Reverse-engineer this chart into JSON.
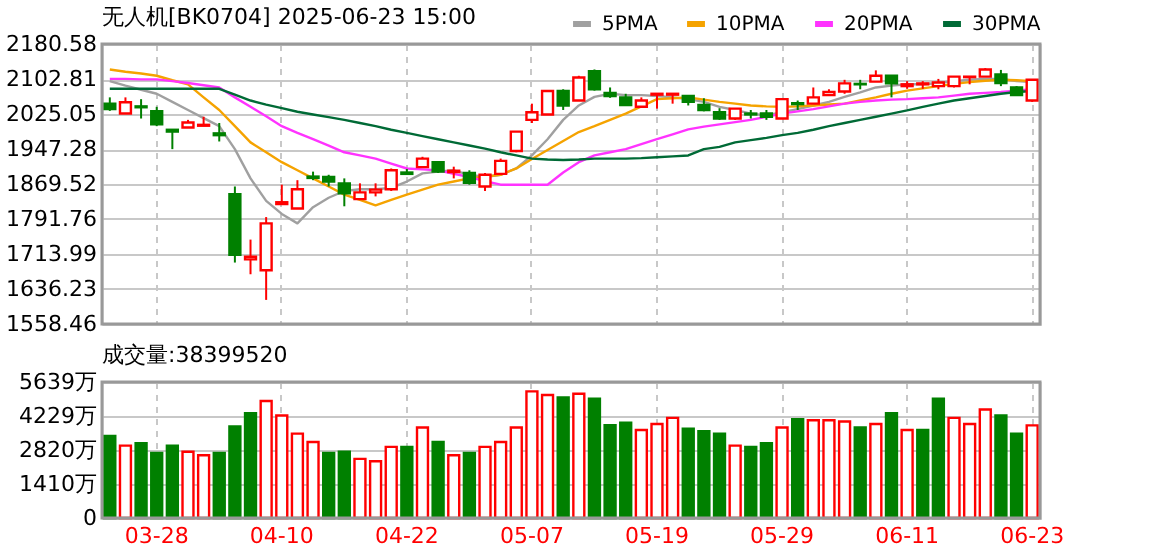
{
  "chart_data": [
    {
      "type": "candlestick",
      "title": "无人机[BK0704] 2025-06-23 15:00",
      "categories": [
        null,
        null,
        null,
        null,
        null,
        null,
        null,
        null,
        null,
        null,
        null,
        null,
        null,
        null,
        null,
        null,
        null,
        null,
        null,
        null,
        null,
        null,
        null,
        null,
        null,
        null,
        null,
        null,
        null,
        null,
        null,
        null,
        null,
        null,
        null,
        null,
        null,
        null,
        null,
        null,
        null,
        null,
        null,
        null,
        null,
        null,
        null,
        null,
        null,
        null,
        null,
        null,
        null,
        null,
        null,
        null,
        null,
        null,
        null,
        null
      ],
      "ohlc": [
        [
          2048,
          2062,
          2032,
          2036
        ],
        [
          2026,
          2062,
          2026,
          2051
        ],
        [
          2042,
          2058,
          2015,
          2040
        ],
        [
          2031,
          2041,
          1998,
          2002
        ],
        [
          1990,
          1991,
          1947,
          1986
        ],
        [
          1995,
          2012,
          1995,
          2006
        ],
        [
          1999,
          2019,
          1998,
          2001
        ],
        [
          1982,
          2005,
          1964,
          1978
        ],
        [
          1847,
          1864,
          1695,
          1712
        ],
        [
          1702,
          1746,
          1669,
          1708
        ],
        [
          1678,
          1796,
          1612,
          1782
        ],
        [
          1825,
          1868,
          1825,
          1829
        ],
        [
          1815,
          1878,
          1815,
          1858
        ],
        [
          1886,
          1897,
          1878,
          1883
        ],
        [
          1885,
          1890,
          1864,
          1875
        ],
        [
          1871,
          1882,
          1820,
          1849
        ],
        [
          1836,
          1871,
          1836,
          1851
        ],
        [
          1851,
          1871,
          1842,
          1857
        ],
        [
          1858,
          1904,
          1854,
          1900
        ],
        [
          1895,
          1903,
          1890,
          1892
        ],
        [
          1907,
          1930,
          1907,
          1926
        ],
        [
          1918,
          1918,
          1894,
          1897
        ],
        [
          1896,
          1908,
          1882,
          1899
        ],
        [
          1894,
          1900,
          1868,
          1872
        ],
        [
          1864,
          1894,
          1854,
          1890
        ],
        [
          1892,
          1926,
          1892,
          1921
        ],
        [
          1943,
          1986,
          1940,
          1986
        ],
        [
          2012,
          2048,
          2005,
          2029
        ],
        [
          2024,
          2076,
          2024,
          2076
        ],
        [
          2076,
          2080,
          2034,
          2044
        ],
        [
          2055,
          2110,
          2055,
          2106
        ],
        [
          2120,
          2124,
          2077,
          2080
        ],
        [
          2072,
          2084,
          2061,
          2065
        ],
        [
          2062,
          2070,
          2045,
          2045
        ],
        [
          2041,
          2062,
          2041,
          2055
        ],
        [
          2068,
          2070,
          2037,
          2070
        ],
        [
          2068,
          2070,
          2048,
          2070
        ],
        [
          2065,
          2067,
          2044,
          2052
        ],
        [
          2045,
          2060,
          2031,
          2034
        ],
        [
          2029,
          2038,
          2012,
          2015
        ],
        [
          2015,
          2037,
          2012,
          2037
        ],
        [
          2026,
          2034,
          2015,
          2024
        ],
        [
          2026,
          2034,
          2012,
          2019
        ],
        [
          2015,
          2058,
          2015,
          2058
        ],
        [
          2049,
          2055,
          2034,
          2047
        ],
        [
          2048,
          2084,
          2048,
          2062
        ],
        [
          2067,
          2080,
          2067,
          2074
        ],
        [
          2075,
          2101,
          2070,
          2093
        ],
        [
          2092,
          2101,
          2080,
          2091
        ],
        [
          2097,
          2122,
          2097,
          2110
        ],
        [
          2110,
          2110,
          2062,
          2093
        ],
        [
          2087,
          2098,
          2081,
          2091
        ],
        [
          2091,
          2098,
          2081,
          2093
        ],
        [
          2087,
          2103,
          2080,
          2095
        ],
        [
          2087,
          2108,
          2084,
          2108
        ],
        [
          2107,
          2108,
          2091,
          2108
        ],
        [
          2108,
          2127,
          2108,
          2124
        ],
        [
          2113,
          2123,
          2087,
          2094
        ],
        [
          2084,
          2087,
          2067,
          2067
        ],
        [
          2055,
          2101,
          2052,
          2101
        ]
      ],
      "colors": [
        "#008000",
        "#ff0000",
        "#008000",
        "#008000",
        "#008000",
        "#ff0000",
        "#ff0000",
        "#008000",
        "#008000",
        "#ff0000",
        "#ff0000",
        "#ff0000",
        "#ff0000",
        "#008000",
        "#008000",
        "#008000",
        "#ff0000",
        "#ff0000",
        "#ff0000",
        "#008000",
        "#ff0000",
        "#008000",
        "#ff0000",
        "#008000",
        "#ff0000",
        "#ff0000",
        "#ff0000",
        "#ff0000",
        "#ff0000",
        "#008000",
        "#ff0000",
        "#008000",
        "#008000",
        "#008000",
        "#ff0000",
        "#ff0000",
        "#ff0000",
        "#008000",
        "#008000",
        "#008000",
        "#ff0000",
        "#008000",
        "#008000",
        "#ff0000",
        "#008000",
        "#ff0000",
        "#ff0000",
        "#ff0000",
        "#008000",
        "#ff0000",
        "#008000",
        "#ff0000",
        "#ff0000",
        "#ff0000",
        "#ff0000",
        "#ff0000",
        "#ff0000",
        "#008000",
        "#008000",
        "#ff0000"
      ],
      "series": [
        {
          "name": "5PMA",
          "type": "line",
          "color": "#a0a0a0",
          "values": [
            2098,
            2088,
            2079,
            2070,
            2052,
            2034,
            2016,
            1998,
            1947,
            1882,
            1832,
            1803,
            1782,
            1818,
            1839,
            1854,
            1858,
            1858,
            1861,
            1875,
            1893,
            1897,
            1900,
            1890,
            1885,
            1890,
            1904,
            1933,
            1969,
            2012,
            2044,
            2063,
            2070,
            2067,
            2067,
            2065,
            2062,
            2058,
            2052,
            2041,
            2034,
            2026,
            2022,
            2029,
            2036,
            2044,
            2052,
            2063,
            2073,
            2084,
            2088,
            2091,
            2091,
            2094,
            2098,
            2101,
            2103,
            2103,
            2098,
            2096
          ]
        },
        {
          "name": "10PMA",
          "type": "line",
          "color": "#f5a300",
          "values": [
            2124,
            2119,
            2115,
            2110,
            2100,
            2091,
            2062,
            2034,
            1998,
            1962,
            1940,
            1918,
            1900,
            1882,
            1864,
            1846,
            1834,
            1822,
            1834,
            1846,
            1857,
            1868,
            1875,
            1882,
            1886,
            1890,
            1904,
            1925,
            1945,
            1965,
            1985,
            1998,
            2012,
            2026,
            2042,
            2058,
            2060,
            2062,
            2057,
            2052,
            2048,
            2044,
            2042,
            2041,
            2042,
            2044,
            2046,
            2048,
            2055,
            2062,
            2070,
            2077,
            2082,
            2087,
            2092,
            2096,
            2099,
            2101,
            2100,
            2098
          ]
        },
        {
          "name": "20PMA",
          "type": "line",
          "color": "#ff33ff",
          "values": [
            2103,
            2103,
            2102,
            2102,
            2098,
            2094,
            2089,
            2084,
            2062,
            2041,
            2020,
            1998,
            1983,
            1969,
            1955,
            1940,
            1933,
            1926,
            1915,
            1904,
            1902,
            1900,
            1892,
            1885,
            1876,
            1868,
            1868,
            1868,
            1868,
            1895,
            1918,
            1933,
            1940,
            1947,
            1958,
            1969,
            1980,
            1991,
            1997,
            2002,
            2007,
            2012,
            2019,
            2026,
            2031,
            2036,
            2042,
            2048,
            2052,
            2055,
            2057,
            2058,
            2060,
            2062,
            2066,
            2070,
            2072,
            2074,
            2077,
            2080
          ]
        },
        {
          "name": "30PMA",
          "type": "line",
          "color": "#006a36",
          "values": [
            2081,
            2081,
            2081,
            2081,
            2081,
            2081,
            2081,
            2081,
            2068,
            2055,
            2046,
            2038,
            2030,
            2024,
            2018,
            2012,
            2005,
            1998,
            1990,
            1983,
            1976,
            1969,
            1962,
            1955,
            1948,
            1940,
            1933,
            1926,
            1924,
            1923,
            1924,
            1926,
            1926,
            1926,
            1927,
            1929,
            1931,
            1933,
            1947,
            1952,
            1962,
            1967,
            1972,
            1978,
            1983,
            1990,
            1998,
            2005,
            2012,
            2019,
            2026,
            2033,
            2041,
            2048,
            2055,
            2060,
            2065,
            2070,
            2074,
            2076
          ]
        }
      ],
      "ylim": [
        1558.46,
        2180.58
      ],
      "yticks": [
        1558.46,
        1636.23,
        1713.99,
        1791.76,
        1869.52,
        1947.28,
        2025.05,
        2102.81,
        2180.58
      ],
      "grid": true,
      "legend": "top right",
      "tick_labels": "y"
    },
    {
      "type": "bar",
      "title": "成交量:38399520",
      "categories": [
        null,
        null,
        null,
        "03-28",
        null,
        null,
        null,
        null,
        null,
        null,
        null,
        "04-10",
        null,
        null,
        null,
        null,
        null,
        null,
        null,
        "04-22",
        null,
        null,
        null,
        null,
        null,
        null,
        null,
        "05-07",
        null,
        null,
        null,
        null,
        null,
        null,
        null,
        "05-19",
        null,
        null,
        null,
        null,
        null,
        null,
        null,
        "05-29",
        null,
        null,
        null,
        null,
        null,
        null,
        null,
        "06-11",
        null,
        null,
        null,
        null,
        null,
        null,
        null,
        "06-23"
      ],
      "values": [
        3400,
        3000,
        3100,
        2700,
        3000,
        2750,
        2600,
        2700,
        3800,
        4350,
        4850,
        4250,
        3500,
        3150,
        2700,
        2750,
        2450,
        2350,
        2950,
        2950,
        3750,
        3150,
        2600,
        2700,
        2950,
        3150,
        3750,
        5250,
        5100,
        5000,
        5150,
        4950,
        3850,
        3950,
        3650,
        3900,
        4150,
        3700,
        3600,
        3500,
        3000,
        2950,
        3100,
        3750,
        4100,
        4050,
        4050,
        4000,
        3750,
        3900,
        4350,
        3650,
        3650,
        4950,
        4150,
        3900,
        4500,
        4250,
        3500,
        3840
      ],
      "colors": [
        "#008000",
        "#ff0000",
        "#008000",
        "#008000",
        "#008000",
        "#ff0000",
        "#ff0000",
        "#008000",
        "#008000",
        "#008000",
        "#ff0000",
        "#ff0000",
        "#ff0000",
        "#ff0000",
        "#008000",
        "#008000",
        "#ff0000",
        "#ff0000",
        "#ff0000",
        "#008000",
        "#ff0000",
        "#008000",
        "#ff0000",
        "#008000",
        "#ff0000",
        "#ff0000",
        "#ff0000",
        "#ff0000",
        "#ff0000",
        "#008000",
        "#ff0000",
        "#008000",
        "#008000",
        "#008000",
        "#ff0000",
        "#ff0000",
        "#ff0000",
        "#008000",
        "#008000",
        "#008000",
        "#ff0000",
        "#008000",
        "#008000",
        "#ff0000",
        "#008000",
        "#ff0000",
        "#ff0000",
        "#ff0000",
        "#008000",
        "#ff0000",
        "#008000",
        "#ff0000",
        "#008000",
        "#008000",
        "#ff0000",
        "#ff0000",
        "#ff0000",
        "#008000",
        "#008000",
        "#ff0000"
      ],
      "ylim": [
        0,
        5639
      ],
      "yticks": [
        0,
        {
          "value": 1410,
          "label": "1410万"
        },
        {
          "value": 2820,
          "label": "2820万"
        },
        {
          "value": 4229,
          "label": "4229万"
        },
        {
          "value": 5639,
          "label": "5639万"
        }
      ],
      "grid": true
    }
  ]
}
